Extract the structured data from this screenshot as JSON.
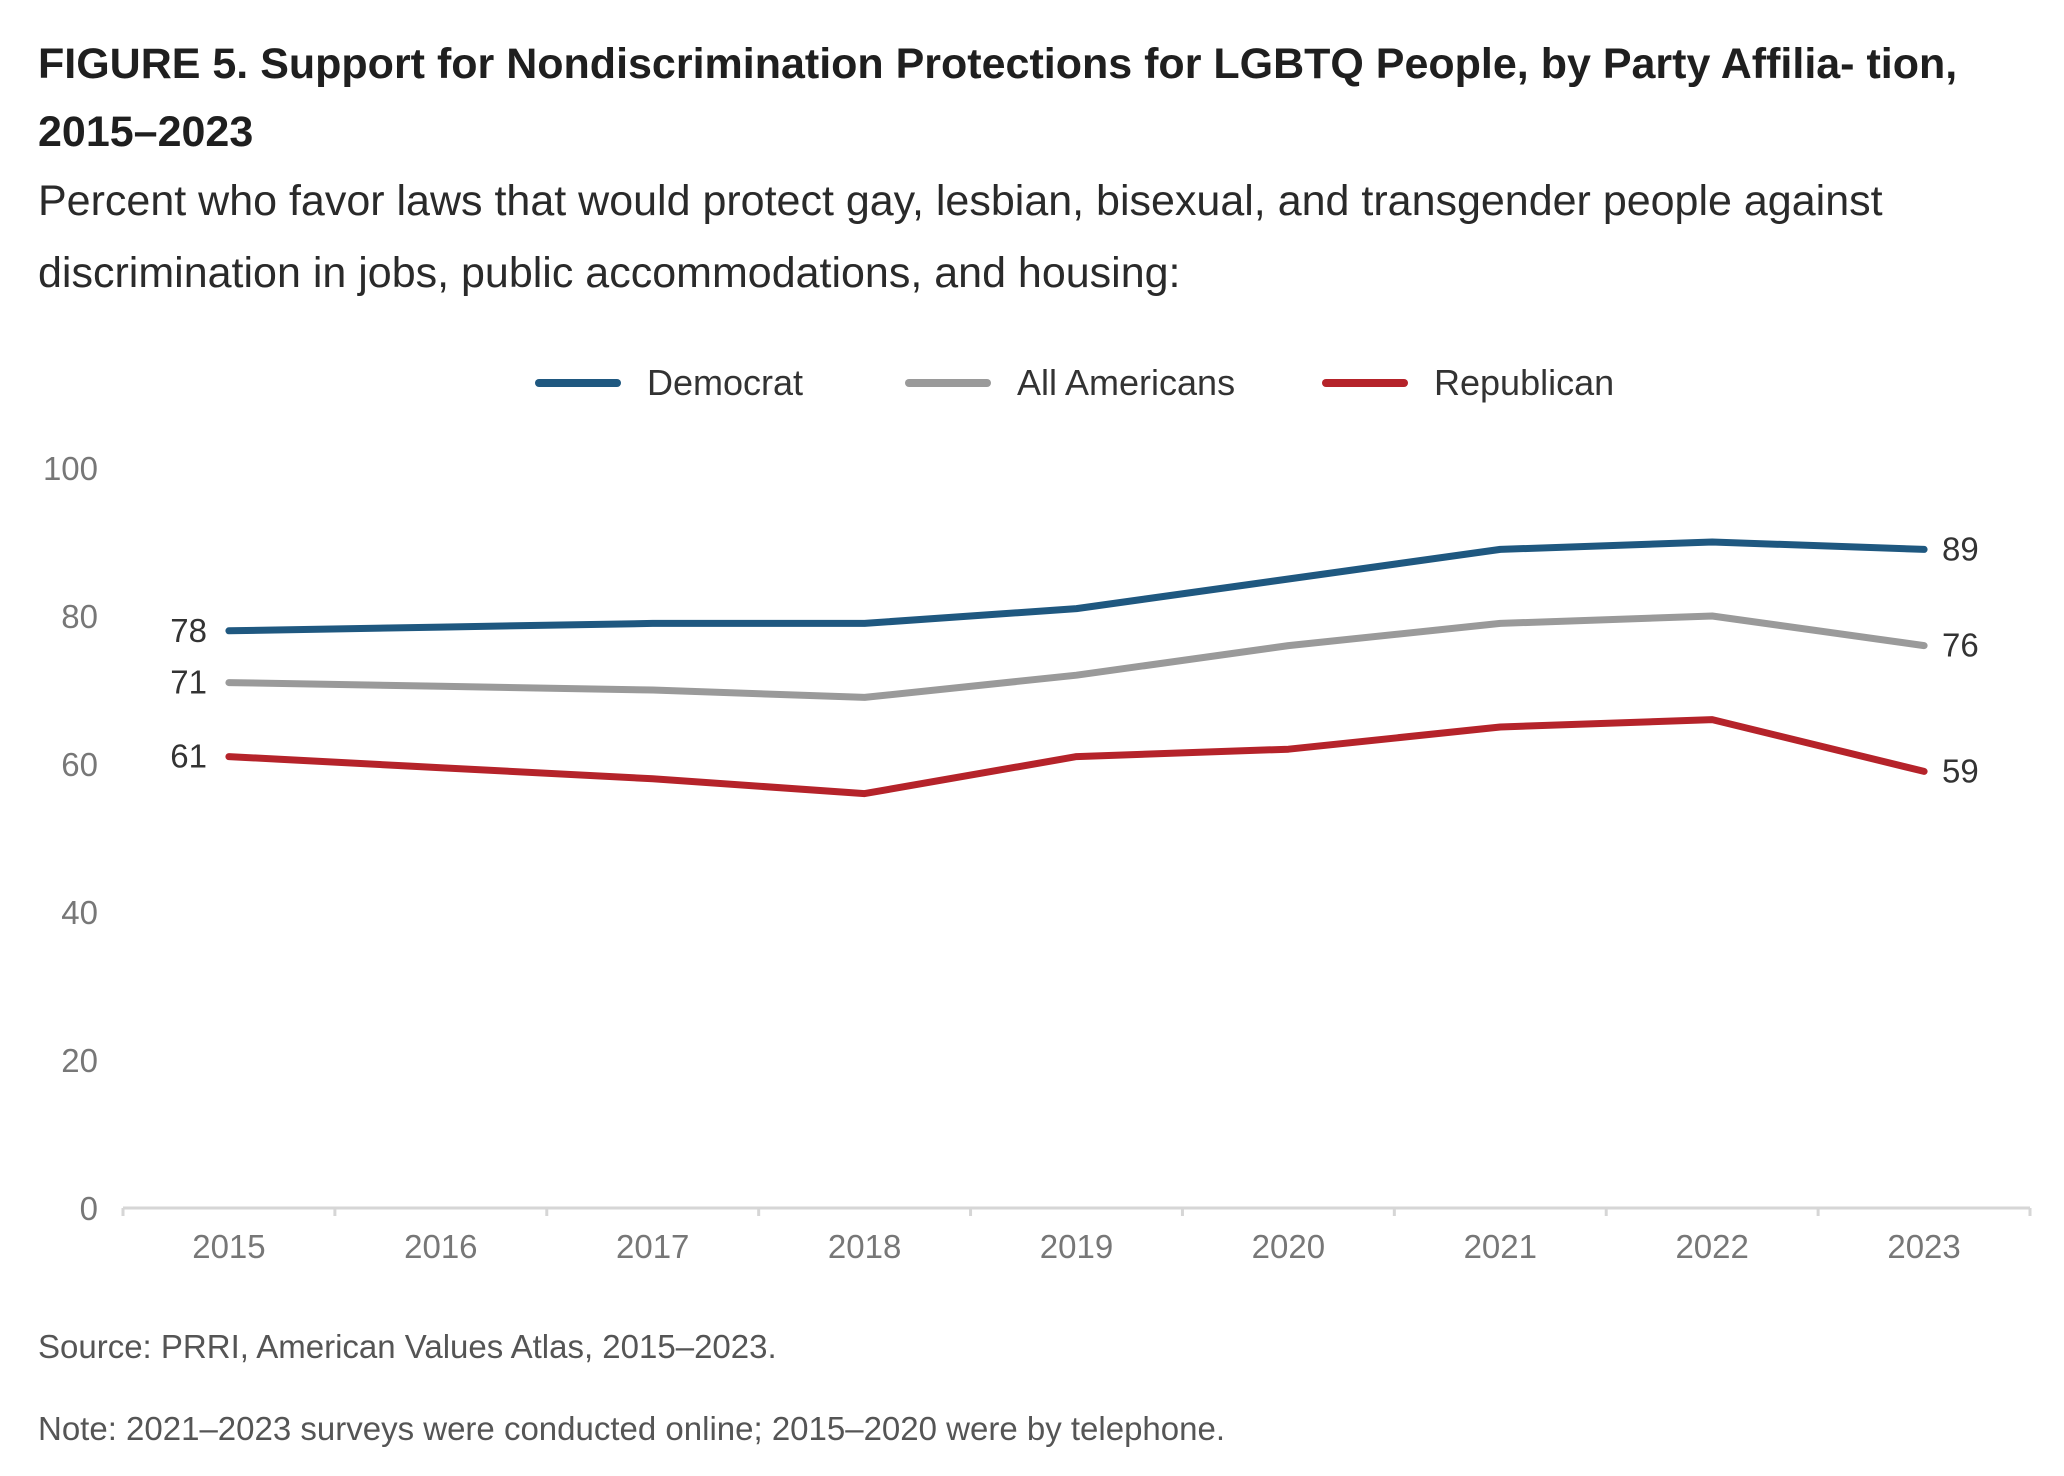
{
  "title": "FIGURE 5. Support for Nondiscrimination Protections for LGBTQ People, by Party Affilia- tion, 2015–2023",
  "subtitle": "Percent who favor laws that would protect gay, lesbian, bisexual, and transgender people against discrimination in jobs, public accommodations, and housing:",
  "source": "Source: PRRI, American Values Atlas, 2015–2023.",
  "note": "Note: 2021–2023 surveys were conducted online; 2015–2020 were by telephone.",
  "colors": {
    "democrat": "#1f5880",
    "all_americans": "#9a9a9a",
    "republican": "#b5232a",
    "axis": "#d6d6d6",
    "tick_text": "#777777",
    "label_text": "#333333"
  },
  "chart_data": {
    "type": "line",
    "x": [
      "2015",
      "2016",
      "2017",
      "2018",
      "2019",
      "2020",
      "2021",
      "2022",
      "2023"
    ],
    "ylim": [
      0,
      100
    ],
    "yticks": [
      0,
      20,
      40,
      60,
      80,
      100
    ],
    "grid": false,
    "legend_position": "top-center",
    "series": [
      {
        "name": "Democrat",
        "key": "democrat",
        "values": [
          78,
          78.5,
          79,
          79,
          81,
          85,
          89,
          90,
          89
        ],
        "start_label": "78",
        "end_label": "89"
      },
      {
        "name": "All Americans",
        "key": "all_americans",
        "values": [
          71,
          70.5,
          70,
          69,
          72,
          76,
          79,
          80,
          76
        ],
        "start_label": "71",
        "end_label": "76"
      },
      {
        "name": "Republican",
        "key": "republican",
        "values": [
          61,
          59.5,
          58,
          56,
          61,
          62,
          65,
          66,
          59
        ],
        "start_label": "61",
        "end_label": "59"
      }
    ]
  }
}
